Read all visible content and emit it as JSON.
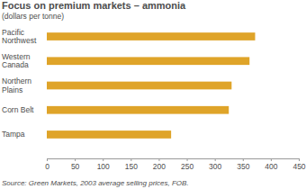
{
  "chart_data": {
    "type": "bar",
    "orientation": "horizontal",
    "title": "Focus on premium markets – ammonia",
    "subtitle": "(dollars per tonne)",
    "categories": [
      "Pacific Northwest",
      "Western Canada",
      "Northern Plains",
      "Corn Belt",
      "Tampa"
    ],
    "values": [
      372,
      362,
      330,
      325,
      222
    ],
    "color": "#dfa429",
    "xlim": [
      0,
      450
    ],
    "xticks": [
      0,
      50,
      100,
      150,
      200,
      250,
      300,
      350,
      400,
      450
    ],
    "grid": false,
    "annotations": [
      "Source: Green Markets, 2003 average selling prices, FOB."
    ]
  }
}
